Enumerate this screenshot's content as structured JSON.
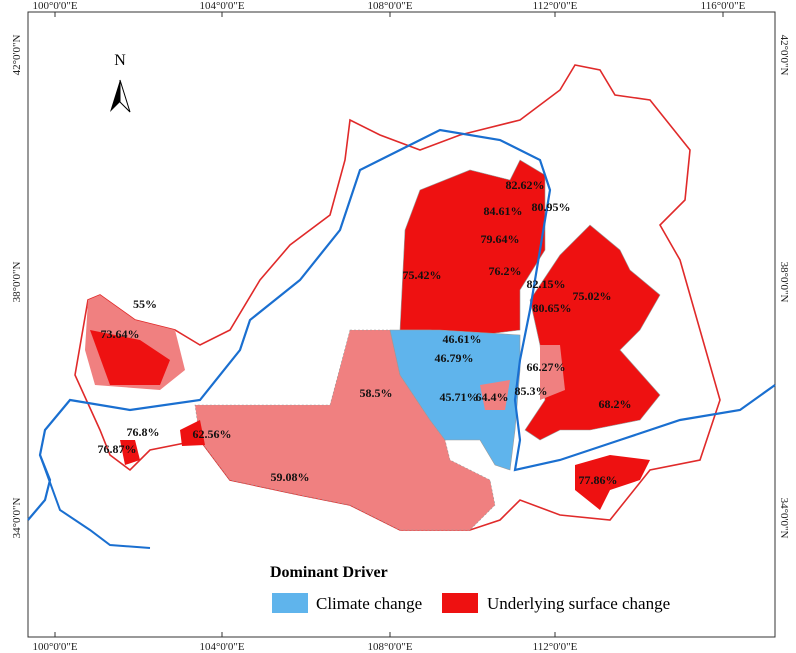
{
  "map": {
    "lon_labels_top": [
      "100°0'0\"E",
      "104°0'0\"E",
      "108°0'0\"E",
      "112°0'0\"E",
      "116°0'0\"E"
    ],
    "lon_labels_bottom": [
      "100°0'0\"E",
      "104°0'0\"E",
      "108°0'0\"E",
      "112°0'0\"E"
    ],
    "lat_labels_left": [
      "42°0'0\"N",
      "38°0'0\"N",
      "34°0'0\"N"
    ],
    "lat_labels_right": [
      "42°0'0\"N",
      "38°0'0\"N",
      "34°0'0\"N"
    ],
    "north": "N",
    "region_labels": [
      "82.62%",
      "84.61%",
      "80.95%",
      "79.64%",
      "75.42%",
      "76.2%",
      "82.15%",
      "80.65%",
      "75.02%",
      "46.61%",
      "46.79%",
      "66.27%",
      "85.3%",
      "45.71%",
      "64.4%",
      "58.5%",
      "68.2%",
      "55%",
      "73.64%",
      "62.56%",
      "76.8%",
      "76.87%",
      "59.08%",
      "77.86%"
    ],
    "legend": {
      "title": "Dominant Driver",
      "items": [
        "Climate change",
        "Underlying surface change"
      ]
    }
  }
}
